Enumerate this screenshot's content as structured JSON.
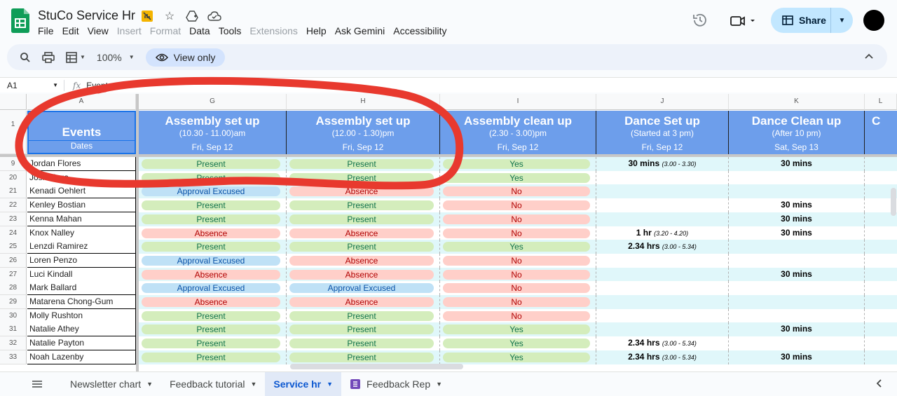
{
  "title": "StuCo Service Hr",
  "menu": [
    "File",
    "Edit",
    "View",
    "Insert",
    "Format",
    "Data",
    "Tools",
    "Extensions",
    "Help",
    "Ask Gemini",
    "Accessibility"
  ],
  "menu_disabled": [
    "Insert",
    "Format",
    "Extensions"
  ],
  "share_label": "Share",
  "toolbar": {
    "zoom": "100%",
    "view_only": "View only"
  },
  "formula": {
    "cell": "A1",
    "fx": "fx",
    "value": "Events"
  },
  "columns": [
    {
      "letter": "A",
      "label": "A"
    },
    {
      "letter": "G",
      "label": "G"
    },
    {
      "letter": "H",
      "label": "H"
    },
    {
      "letter": "I",
      "label": "I"
    },
    {
      "letter": "J",
      "label": "J"
    },
    {
      "letter": "K",
      "label": "K"
    },
    {
      "letter": "L",
      "label": "L"
    }
  ],
  "header": {
    "events": "Events",
    "dates": "Dates",
    "cols": [
      {
        "title": "Assembly set up",
        "sub": "(10.30 - 11.00)am",
        "date": "Fri, Sep 12"
      },
      {
        "title": "Assembly set up",
        "sub": "(12.00 - 1.30)pm",
        "date": "Fri, Sep 12"
      },
      {
        "title": "Assembly clean up",
        "sub": "(2.30 - 3.00)pm",
        "date": "Fri, Sep 12"
      },
      {
        "title": "Dance Set up",
        "sub": "(Started at 3 pm)",
        "date": "Fri, Sep 12"
      },
      {
        "title": "Dance Clean up",
        "sub": "(After 10 pm)",
        "date": "Sat, Sep 13"
      },
      {
        "title": "C",
        "sub": "",
        "date": ""
      }
    ]
  },
  "header_row_number": "1",
  "rows": [
    {
      "num": "9",
      "name": "Jordan Flores",
      "g": "Present",
      "h": "Present",
      "i": "Yes",
      "j": "30 mins",
      "j_note": "(3.00 - 3.30)",
      "k": "30 mins"
    },
    {
      "num": "20",
      "name": "Josh Vega",
      "g": "Present",
      "h": "Present",
      "i": "Yes",
      "j": "",
      "j_note": "",
      "k": ""
    },
    {
      "num": "21",
      "name": "Kenadi Oehlert",
      "g": "Approval Excused",
      "h": "Absence",
      "i": "No",
      "j": "",
      "j_note": "",
      "k": ""
    },
    {
      "num": "22",
      "name": "Kenley Bostian",
      "g": "Present",
      "h": "Present",
      "i": "No",
      "j": "",
      "j_note": "",
      "k": "30 mins"
    },
    {
      "num": "23",
      "name": "Kenna Mahan",
      "g": "Present",
      "h": "Present",
      "i": "No",
      "j": "",
      "j_note": "",
      "k": "30 mins"
    },
    {
      "num": "24",
      "name": "Knox Nalley",
      "g": "Absence",
      "h": "Absence",
      "i": "No",
      "j": "1 hr",
      "j_note": "(3.20 - 4.20)",
      "k": "30 mins"
    },
    {
      "num": "25",
      "name": "Lenzdi Ramirez",
      "g": "Present",
      "h": "Present",
      "i": "Yes",
      "j": "2.34 hrs",
      "j_note": "(3.00 - 5.34)",
      "k": ""
    },
    {
      "num": "26",
      "name": "Loren Penzo",
      "g": "Approval Excused",
      "h": "Absence",
      "i": "No",
      "j": "",
      "j_note": "",
      "k": ""
    },
    {
      "num": "27",
      "name": "Luci Kindall",
      "g": "Absence",
      "h": "Absence",
      "i": "No",
      "j": "",
      "j_note": "",
      "k": "30 mins"
    },
    {
      "num": "28",
      "name": "Mark Ballard",
      "g": "Approval Excused",
      "h": "Approval Excused",
      "i": "No",
      "j": "",
      "j_note": "",
      "k": ""
    },
    {
      "num": "29",
      "name": "Matarena Chong-Gum",
      "g": "Absence",
      "h": "Absence",
      "i": "No",
      "j": "",
      "j_note": "",
      "k": ""
    },
    {
      "num": "30",
      "name": "Molly Rushton",
      "g": "Present",
      "h": "Present",
      "i": "No",
      "j": "",
      "j_note": "",
      "k": ""
    },
    {
      "num": "31",
      "name": "Natalie Athey",
      "g": "Present",
      "h": "Present",
      "i": "Yes",
      "j": "",
      "j_note": "",
      "k": "30 mins"
    },
    {
      "num": "32",
      "name": "Natalie Payton",
      "g": "Present",
      "h": "Present",
      "i": "Yes",
      "j": "2.34 hrs",
      "j_note": "(3.00 - 5.34)",
      "k": ""
    },
    {
      "num": "33",
      "name": "Noah Lazenby",
      "g": "Present",
      "h": "Present",
      "i": "Yes",
      "j": "2.34 hrs",
      "j_note": "(3.00 - 5.34)",
      "k": "30 mins"
    }
  ],
  "sheet_tabs": [
    {
      "label": "Newsletter chart",
      "active": false,
      "form": false
    },
    {
      "label": "Feedback tutorial",
      "active": false,
      "form": false
    },
    {
      "label": "Service hr",
      "active": true,
      "form": false
    },
    {
      "label": "Feedback Rep",
      "active": false,
      "form": true
    }
  ],
  "colors": {
    "header_blue": "#6d9eeb",
    "present_bg": "#d4edbc",
    "absence_bg": "#ffcfc9",
    "approval_bg": "#bfe1f6",
    "row_tint": "#e0f7fa",
    "annotation_red": "#e8392e"
  }
}
